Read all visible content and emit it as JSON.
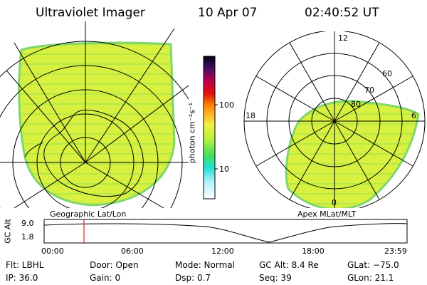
{
  "header": {
    "title": "Ultraviolet Imager",
    "date": "10 Apr 07",
    "time": "02:40:52 UT"
  },
  "panels": {
    "left_label": "Geographic Lat/Lon",
    "right_label": "Apex MLat/MLT"
  },
  "colorbar": {
    "unit_label": "photon cm⁻²s⁻¹",
    "tick_100": "100",
    "tick_10": "10"
  },
  "polar_right": {
    "mlt_top": "12",
    "mlt_left": "18",
    "mlt_right": "6",
    "mlt_bottom": "0",
    "lat_60": "60",
    "lat_70": "70",
    "lat_80": "80"
  },
  "timeline": {
    "ylabel": "GC Alt",
    "ytick_high": "9.0",
    "ytick_low": "1.8",
    "xticks": [
      "00:00",
      "06:00",
      "12:00",
      "18:00",
      "23:59"
    ],
    "marker_time": "02:40"
  },
  "info": {
    "filter": "Flt: LBHL",
    "door": "Door:  Open",
    "mode": "Mode:  Normal",
    "gc_alt": "GC Alt:  8.4 Re",
    "glat": "GLat:  −75.0",
    "ip": "IP:  36.0",
    "gain": "Gain:    0",
    "dsp": "Dsp:      0.7",
    "seq": "Seq:  39",
    "glon": "GLon:   21.1"
  },
  "colors": {
    "image_fill": "#d8f040",
    "image_edge": "#7fd66a",
    "marker": "#e02020"
  }
}
